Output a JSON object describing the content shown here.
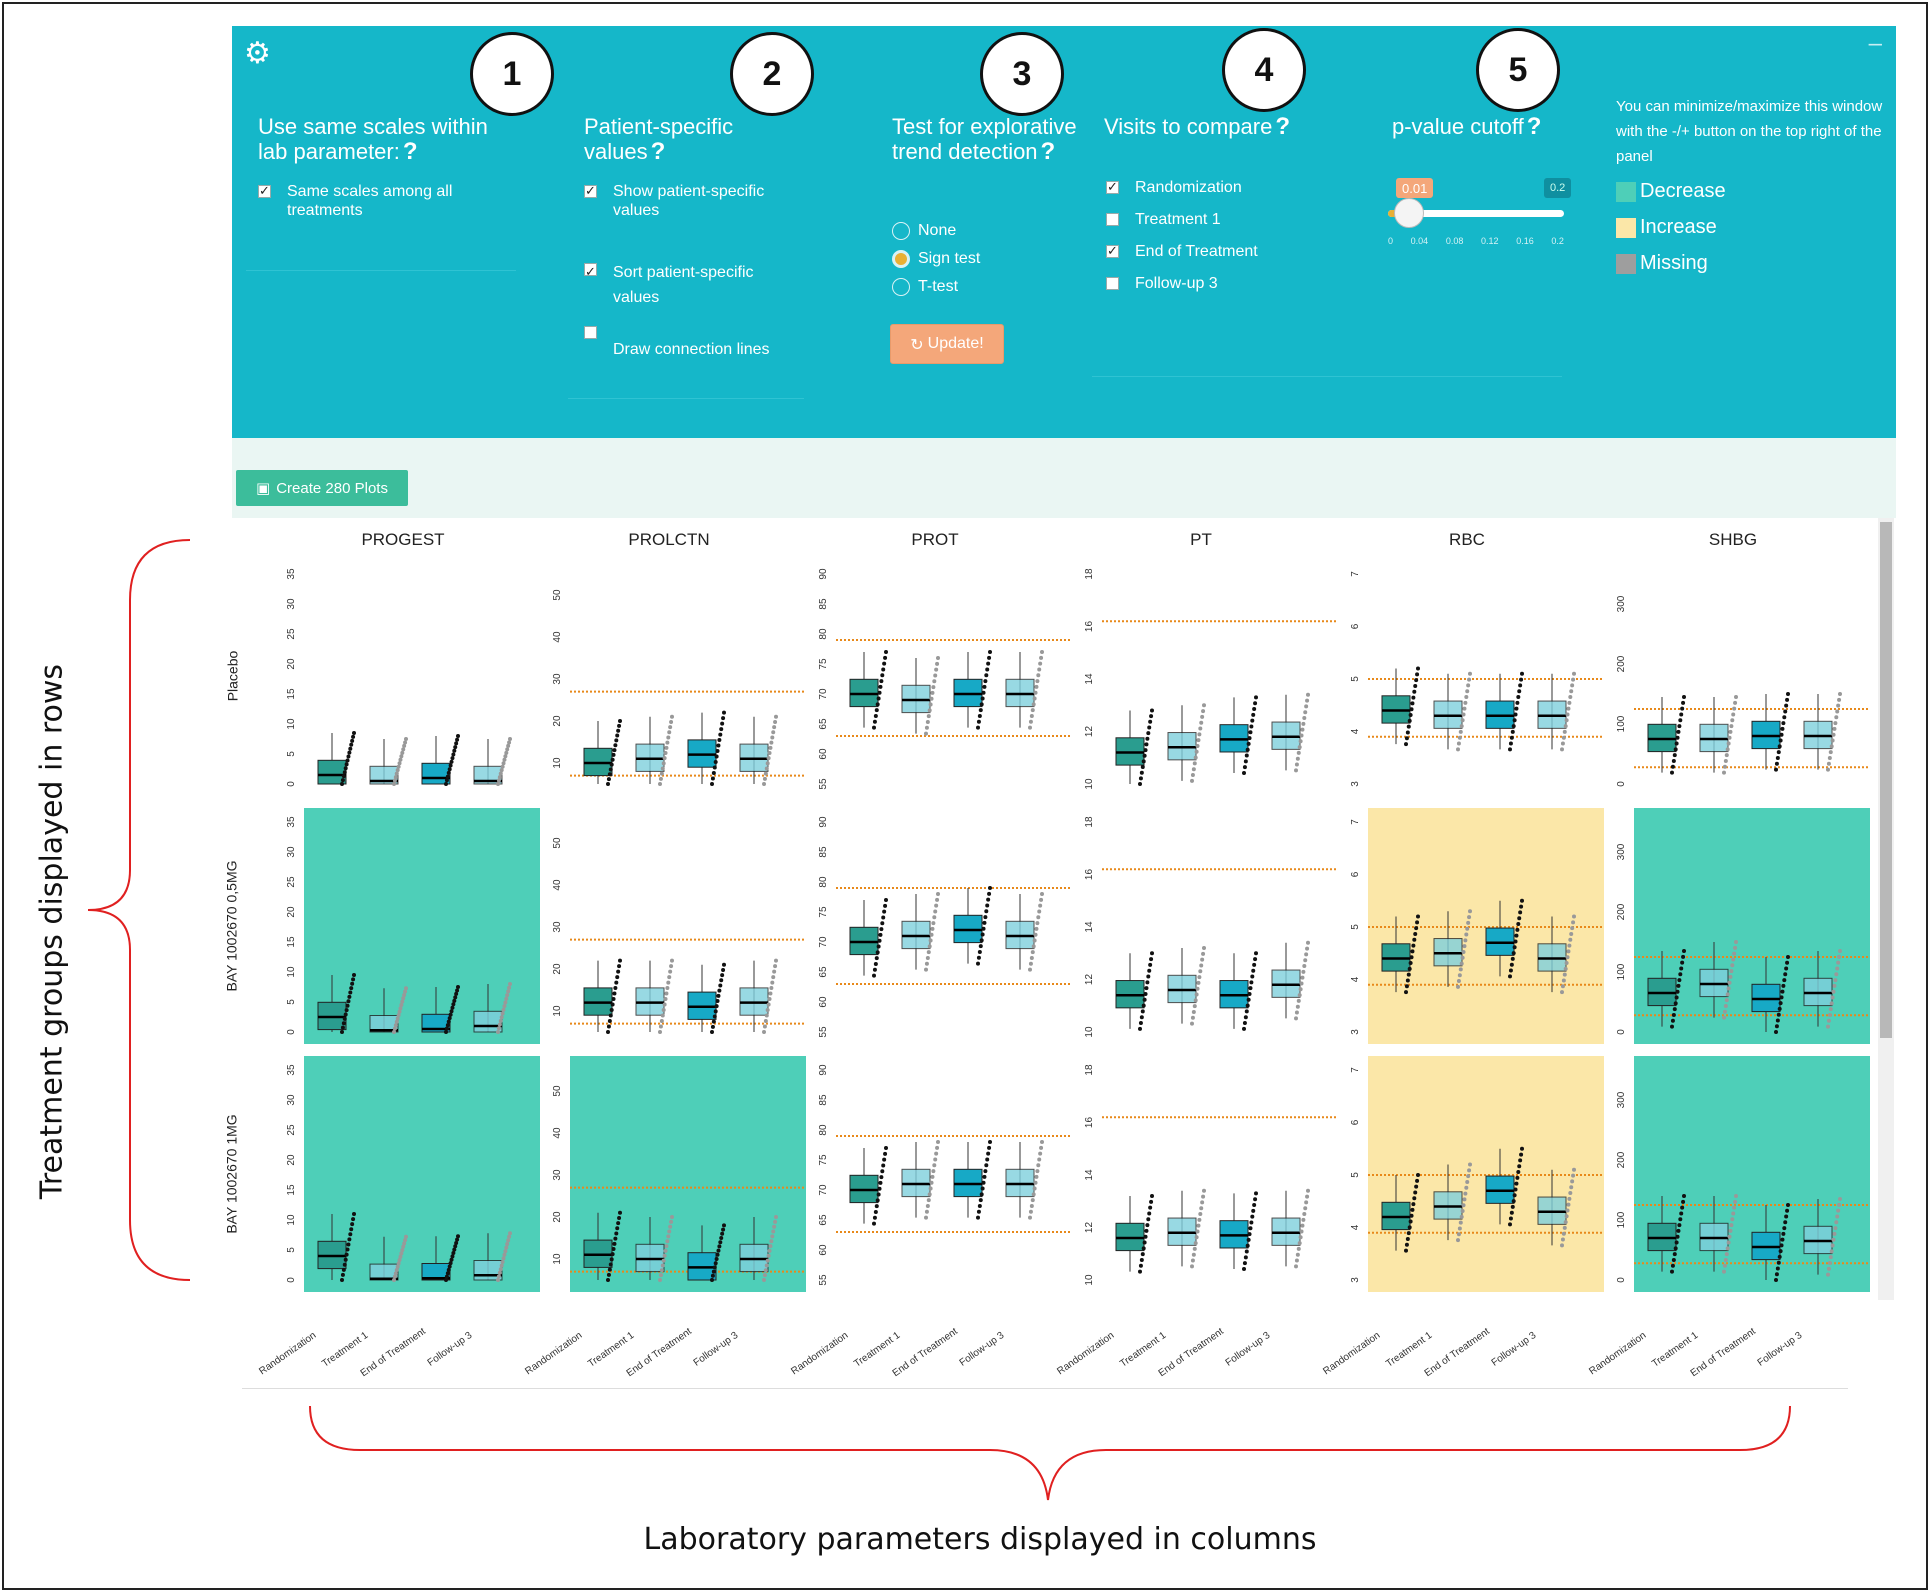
{
  "panel": {
    "sections": {
      "scales": {
        "title": "Use same scales within lab parameter:",
        "opt1": "Same scales among all treatments"
      },
      "patient": {
        "title": "Patient-specific values",
        "opt1": "Show patient-specific values",
        "opt2": "Sort patient-specific values",
        "opt3": "Draw connection lines"
      },
      "trend": {
        "title": "Test for explorative trend detection",
        "r1": "None",
        "r2": "Sign test",
        "r3": "T-test",
        "update": "Update!"
      },
      "visits": {
        "title": "Visits to compare",
        "v1": "Randomization",
        "v2": "Treatment 1",
        "v3": "End of Treatment",
        "v4": "Follow-up 3"
      },
      "pvalue": {
        "title": "p-value cutoff",
        "min_label": "0.01",
        "max_label": "0.2",
        "value": 0.01,
        "ticks": [
          "0",
          "0.04",
          "0.08",
          "0.12",
          "0.16",
          "0.2"
        ]
      },
      "legend": {
        "note": "You can minimize/maximize this window with the -/+ button on the top right of the panel",
        "decrease": "Decrease",
        "increase": "Increase",
        "missing": "Missing"
      }
    },
    "numbers": [
      "1",
      "2",
      "3",
      "4",
      "5"
    ],
    "colors": {
      "panel": "#15b7c9",
      "decrease": "#4ecfb8",
      "increase": "#fbe7a8",
      "missing": "#9e9e9e"
    }
  },
  "create_button": "Create 280 Plots",
  "columns": [
    "PROGEST",
    "PROLCTN",
    "PROT",
    "PT",
    "RBC",
    "SHBG"
  ],
  "rows": [
    "Placebo",
    "BAY 1002670 0,5MG",
    "BAY 1002670 1MG"
  ],
  "visits": [
    "Randomization",
    "Treatment 1",
    "End of Treatment",
    "Follow-up 3"
  ],
  "annotations": {
    "rows_label": "Treatment groups displayed in rows",
    "cols_label": "Laboratory parameters displayed in columns"
  },
  "chart_data": {
    "type": "boxplot-grid",
    "backgrounds": [
      [
        "white",
        "white",
        "white",
        "white",
        "white",
        "white"
      ],
      [
        "decrease",
        "white",
        "white",
        "white",
        "increase",
        "decrease"
      ],
      [
        "decrease",
        "decrease",
        "white",
        "white",
        "increase",
        "decrease"
      ]
    ],
    "y_ticks": {
      "PROGEST": [
        "0",
        "5",
        "10",
        "15",
        "20",
        "25",
        "30",
        "35"
      ],
      "PROLCTN": [
        "10",
        "20",
        "30",
        "40",
        "50"
      ],
      "PROT": [
        "55",
        "60",
        "65",
        "70",
        "75",
        "80",
        "85",
        "90"
      ],
      "PT": [
        "10",
        "12",
        "14",
        "16",
        "18"
      ],
      "RBC": [
        "3",
        "4",
        "5",
        "6",
        "7"
      ],
      "SHBG": [
        "0",
        "100",
        "200",
        "300"
      ]
    },
    "y_range": {
      "PROGEST": [
        0,
        35
      ],
      "PROLCTN": [
        5,
        55
      ],
      "PROT": [
        55,
        90
      ],
      "PT": [
        10,
        18
      ],
      "RBC": [
        3,
        7
      ],
      "SHBG": [
        0,
        350
      ]
    },
    "ref_lines": {
      "PROGEST": [],
      "PROLCTN": [
        7,
        27
      ],
      "PROT": [
        63,
        79
      ],
      "PT": [
        16.2
      ],
      "RBC": [
        3.9,
        5
      ],
      "SHBG": [
        28,
        125
      ]
    },
    "medians": {
      "PROGEST": [
        [
          1.5,
          0.5,
          1,
          0.5
        ],
        [
          2.5,
          0.3,
          0.5,
          1
        ],
        [
          4,
          0.2,
          0.3,
          0.8
        ]
      ],
      "PROLCTN": [
        [
          10,
          11,
          12,
          11
        ],
        [
          12,
          12,
          11,
          12
        ],
        [
          11,
          10,
          8,
          10
        ]
      ],
      "PROT": [
        [
          70,
          69,
          70,
          70
        ],
        [
          70,
          71,
          72,
          71
        ],
        [
          70,
          71,
          71,
          71
        ]
      ],
      "PT": [
        [
          11.2,
          11.4,
          11.7,
          11.8
        ],
        [
          11.4,
          11.6,
          11.4,
          11.8
        ],
        [
          11.6,
          11.8,
          11.7,
          11.8
        ]
      ],
      "RBC": [
        [
          4.4,
          4.3,
          4.3,
          4.3
        ],
        [
          4.4,
          4.5,
          4.7,
          4.4
        ],
        [
          4.2,
          4.4,
          4.7,
          4.3
        ]
      ],
      "SHBG": [
        [
          75,
          75,
          80,
          80
        ],
        [
          65,
          80,
          55,
          65
        ],
        [
          70,
          70,
          55,
          65
        ]
      ]
    }
  }
}
